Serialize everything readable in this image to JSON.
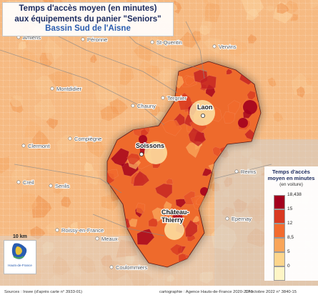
{
  "title": {
    "line1": "Temps d'accès moyen (en minutes)",
    "line2": "aux équipements du panier \"Seniors\"",
    "subtitle": "Bassin Sud de l'Aisne"
  },
  "places_dim": [
    {
      "name": "Amiens"
    },
    {
      "name": "Péronne"
    },
    {
      "name": "St-Quentin"
    },
    {
      "name": "Vervins"
    },
    {
      "name": "Montdidier"
    },
    {
      "name": "Tergnier"
    },
    {
      "name": "Chauny"
    },
    {
      "name": "Compiègne"
    },
    {
      "name": "Clermont"
    },
    {
      "name": "Creil"
    },
    {
      "name": "Senlis"
    },
    {
      "name": "Reims"
    },
    {
      "name": "Roissy-en-France"
    },
    {
      "name": "Meaux"
    },
    {
      "name": "Epernay"
    },
    {
      "name": "Coulommiers"
    }
  ],
  "places_main": [
    {
      "name": "Laon"
    },
    {
      "name": "Soissons"
    },
    {
      "name": "Château-\nThierry"
    }
  ],
  "legend": {
    "title": "Temps d'accès moyen en minutes",
    "subtitle": "(en voiture)",
    "classes": [
      {
        "color": "#a3001e",
        "label": "18,438"
      },
      {
        "color": "#d93a22",
        "label": "15"
      },
      {
        "color": "#f26b2e",
        "label": "12"
      },
      {
        "color": "#f9a55a",
        "label": "8,5"
      },
      {
        "color": "#fdd58c",
        "label": "5"
      },
      {
        "color": "#fef5c6",
        "label": "0"
      }
    ]
  },
  "scale_bar": {
    "label": "10 km"
  },
  "logo": {
    "text": "Hauts-de-France"
  },
  "footer": {
    "sources": "Sources : Insee (d'après carte n° 3933-01)",
    "cartography": "cartographie : Agence Hauts-de-France 2020-2040",
    "date": "17 octobre 2022 n° 3840-15"
  },
  "colors": {
    "background_land": "#f6ba82",
    "sea_grey": "#c9c9c9",
    "title_navy": "#1b2a5e",
    "subtitle_blue": "#2a5db0"
  }
}
